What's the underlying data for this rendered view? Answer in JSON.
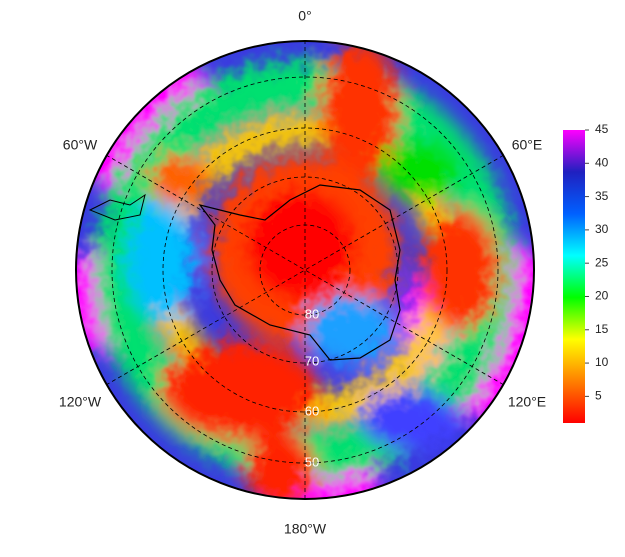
{
  "lon_labels": [
    "0°",
    "60°E",
    "120°E",
    "180°W",
    "120°W",
    "60°W"
  ],
  "lat_labels": [
    "80",
    "70",
    "60",
    "50"
  ],
  "colorbar": {
    "lim": [
      1,
      45
    ],
    "ticks": [
      5,
      10,
      15,
      20,
      25,
      30,
      35,
      40,
      45
    ],
    "colors": [
      "#ff0000",
      "#ff8000",
      "#ffff00",
      "#00ff00",
      "#00ffff",
      "#0060ff",
      "#2020c0",
      "#ff00ff"
    ]
  }
}
